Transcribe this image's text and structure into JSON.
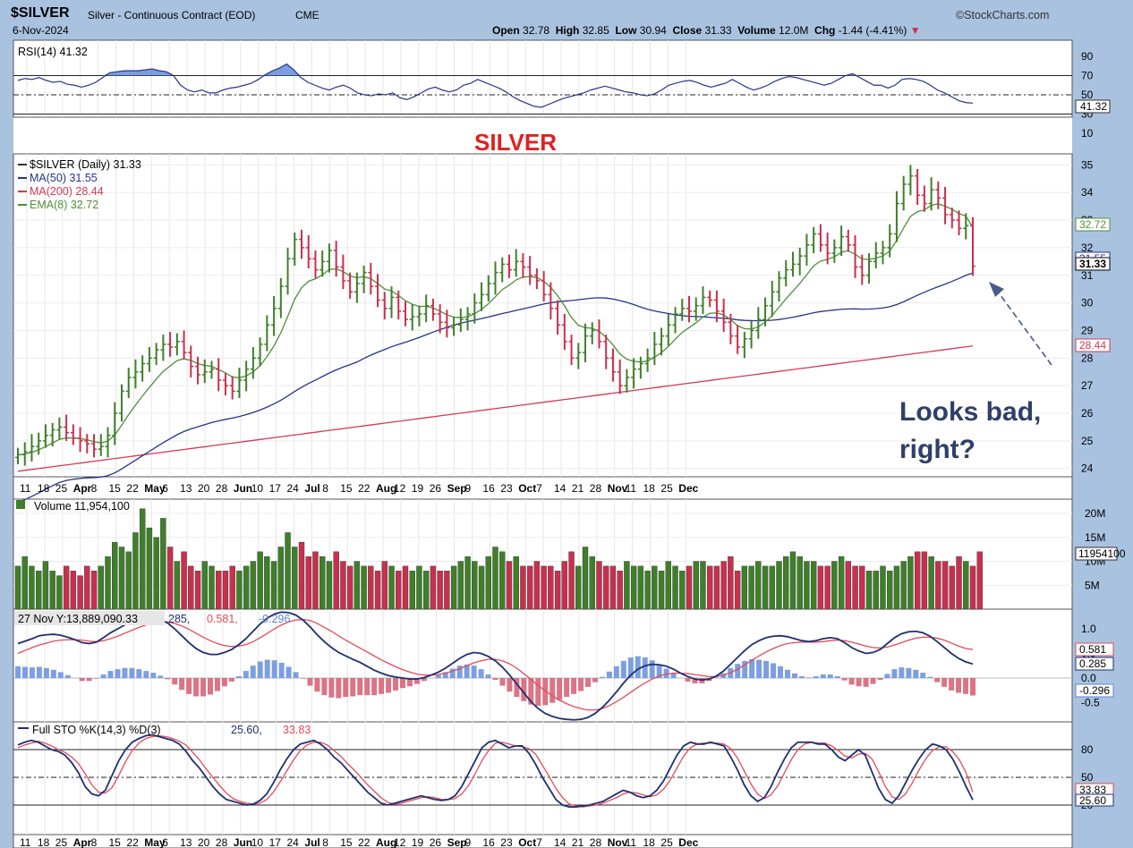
{
  "header": {
    "symbol": "$SILVER",
    "name": "Silver - Continuous Contract (EOD)",
    "exchange": "CME",
    "date": "6-Nov-2024",
    "brand": "©StockCharts.com",
    "open_label": "Open",
    "open": "32.78",
    "high_label": "High",
    "high": "32.85",
    "low_label": "Low",
    "low": "30.94",
    "close_label": "Close",
    "close": "31.33",
    "volume_label": "Volume",
    "volume": "12.0M",
    "chg_label": "Chg",
    "chg": "-1.44 (-4.41%)",
    "chg_arrow": "▼"
  },
  "colors": {
    "up": "#3f7f2a",
    "down": "#c8304e",
    "ma50": "#27348b",
    "ma200": "#d43a52",
    "ema8": "#4f8f3c",
    "macd": "#1f2f6f",
    "signal": "#e34a5a",
    "panel_bg": "#ffffff",
    "frame": "#a9c2e0"
  },
  "chart_data": [
    {
      "type": "line",
      "panel": "rsi",
      "legend": "RSI(14) 41.32",
      "ylim": [
        0,
        100
      ],
      "yticks": [
        "90",
        "70",
        "50",
        "30",
        "10"
      ],
      "levels": [
        70,
        50,
        30
      ],
      "last_value_label": "41.32",
      "values": [
        65,
        67,
        66,
        68,
        65,
        63,
        64,
        61,
        60,
        58,
        60,
        63,
        68,
        73,
        74,
        75,
        75,
        75,
        76,
        77,
        75,
        74,
        70,
        60,
        55,
        53,
        55,
        52,
        52,
        55,
        57,
        58,
        60,
        62,
        66,
        71,
        75,
        78,
        82,
        76,
        68,
        63,
        60,
        57,
        55,
        58,
        60,
        57,
        52,
        50,
        49,
        51,
        50,
        52,
        47,
        45,
        48,
        52,
        56,
        58,
        55,
        53,
        55,
        60,
        62,
        66,
        63,
        60,
        57,
        53,
        48,
        44,
        41,
        38,
        37,
        40,
        43,
        46,
        48,
        50,
        52,
        55,
        57,
        59,
        57,
        55,
        53,
        52,
        50,
        49,
        51,
        55,
        60,
        62,
        64,
        65,
        63,
        60,
        58,
        60,
        62,
        66,
        62,
        58,
        55,
        57,
        60,
        64,
        67,
        69,
        68,
        66,
        64,
        62,
        60,
        62,
        66,
        70,
        72,
        68,
        64,
        60,
        60,
        57,
        60,
        66,
        67,
        66,
        64,
        60,
        55,
        52,
        48,
        44,
        42,
        41.32
      ]
    },
    {
      "type": "ohlc",
      "panel": "price",
      "title": "SILVER",
      "legend": [
        "$SILVER (Daily) 31.33",
        "MA(50) 31.55",
        "MA(200) 28.44",
        "EMA(8) 32.72"
      ],
      "ylim": [
        23.7,
        35.4
      ],
      "yticks": [
        35,
        34,
        33,
        32,
        31,
        30,
        29,
        28,
        27,
        26,
        25,
        24
      ],
      "x_labels": [
        "11",
        "18",
        "25",
        "Apr",
        "8",
        "15",
        "22",
        "May",
        "6",
        "13",
        "20",
        "28",
        "Jun",
        "10",
        "17",
        "24",
        "Jul",
        "8",
        "15",
        "22",
        "Aug",
        "12",
        "19",
        "26",
        "Sep",
        "9",
        "16",
        "23",
        "Oct",
        "7",
        "14",
        "21",
        "28",
        "Nov",
        "11",
        "18",
        "25",
        "Dec"
      ],
      "bold_x_labels": [
        "Apr",
        "May",
        "Jun",
        "Jul",
        "Aug",
        "Sep",
        "Oct",
        "Nov",
        "Dec"
      ],
      "price_labels": [
        "32.72",
        "31.55",
        "31.33",
        "28.44"
      ],
      "annotation": "Looks bad, right?",
      "close": [
        24.5,
        24.6,
        24.8,
        25.0,
        25.2,
        25.4,
        25.5,
        25.3,
        25.1,
        25.0,
        24.9,
        24.7,
        24.8,
        25.2,
        26.0,
        26.8,
        27.3,
        27.5,
        27.8,
        28.0,
        28.3,
        28.5,
        28.4,
        28.6,
        28.2,
        27.7,
        27.4,
        27.5,
        27.6,
        27.2,
        27.0,
        26.8,
        27.2,
        27.6,
        28.0,
        28.5,
        29.2,
        29.8,
        30.6,
        31.6,
        32.3,
        32.0,
        31.6,
        31.2,
        31.5,
        31.9,
        31.3,
        30.8,
        30.4,
        30.7,
        31.1,
        30.6,
        30.1,
        29.8,
        30.2,
        29.7,
        29.4,
        29.5,
        29.6,
        29.9,
        29.6,
        29.3,
        29.1,
        29.2,
        29.4,
        29.6,
        30.0,
        30.3,
        30.7,
        31.1,
        31.4,
        31.2,
        31.5,
        31.3,
        31.0,
        30.8,
        30.3,
        29.8,
        29.2,
        28.6,
        28.0,
        28.2,
        28.8,
        29.0,
        28.6,
        28.0,
        27.5,
        27.0,
        27.3,
        27.6,
        27.8,
        28.0,
        28.5,
        28.8,
        29.2,
        29.6,
        29.8,
        29.7,
        29.9,
        30.2,
        30.1,
        29.7,
        29.3,
        28.8,
        28.4,
        28.7,
        29.0,
        29.4,
        29.9,
        30.4,
        30.9,
        31.2,
        31.4,
        31.7,
        32.1,
        32.5,
        32.1,
        31.8,
        32.0,
        32.4,
        32.1,
        31.3,
        31.0,
        31.5,
        31.8,
        32.0,
        32.5,
        33.6,
        34.3,
        34.6,
        33.9,
        33.6,
        34.1,
        33.8,
        33.2,
        33.0,
        32.7,
        32.8,
        31.33
      ]
    },
    {
      "type": "bar",
      "panel": "volume",
      "legend": "Volume 11,954,100",
      "yticks": [
        "20M",
        "15M",
        "10M",
        "5M"
      ],
      "last_value_label": "11954100",
      "unit": "millions",
      "values": [
        9,
        11,
        9,
        8,
        10,
        8,
        7,
        9,
        8,
        7,
        9,
        8,
        9,
        11,
        14,
        13,
        12,
        16,
        21,
        17,
        15,
        19,
        13,
        10,
        12,
        9,
        8,
        10,
        9,
        8,
        8,
        9,
        8,
        9,
        10,
        12,
        11,
        10,
        13,
        16,
        13,
        14,
        11,
        12,
        11,
        10,
        12,
        10,
        9,
        10,
        9,
        9,
        8,
        10,
        9,
        8,
        9,
        8,
        9,
        8,
        9,
        8,
        8,
        9,
        10,
        11,
        10,
        9,
        11,
        13,
        12,
        10,
        11,
        9,
        9,
        10,
        9,
        9,
        8,
        10,
        12,
        9,
        13,
        11,
        10,
        9,
        9,
        8,
        10,
        9,
        9,
        8,
        9,
        8,
        10,
        9,
        8,
        9,
        10,
        10,
        9,
        9,
        10,
        11,
        8,
        9,
        9,
        10,
        9,
        9,
        10,
        11,
        12,
        11,
        10,
        10,
        9,
        9,
        10,
        11,
        10,
        9,
        9,
        8,
        8,
        9,
        8,
        9,
        10,
        11,
        12,
        12,
        11,
        10,
        10,
        9,
        11,
        10,
        9,
        12
      ]
    },
    {
      "type": "line",
      "panel": "macd",
      "legend": [
        "27 Nov Y:13,889,090.33",
        "285,",
        "0.581,",
        "-0.296"
      ],
      "yticks": [
        "1.0",
        "0.5",
        "0.0",
        "-0.5"
      ],
      "price_labels": [
        "0.581",
        "0.285",
        "-0.296"
      ],
      "macd": [
        0.7,
        0.75,
        0.8,
        0.86,
        0.88,
        0.89,
        0.87,
        0.83,
        0.78,
        0.72,
        0.7,
        0.73,
        0.82,
        0.92,
        1.0,
        1.08,
        1.14,
        1.18,
        1.2,
        1.21,
        1.18,
        1.12,
        1.0,
        0.86,
        0.72,
        0.6,
        0.52,
        0.48,
        0.48,
        0.52,
        0.58,
        0.68,
        0.8,
        0.95,
        1.1,
        1.22,
        1.3,
        1.34,
        1.33,
        1.28,
        1.18,
        1.04,
        0.88,
        0.74,
        0.62,
        0.52,
        0.45,
        0.38,
        0.32,
        0.24,
        0.16,
        0.1,
        0.05,
        0.02,
        0.0,
        -0.02,
        -0.02,
        0.01,
        0.06,
        0.12,
        0.2,
        0.3,
        0.4,
        0.48,
        0.52,
        0.5,
        0.44,
        0.35,
        0.22,
        0.06,
        -0.12,
        -0.3,
        -0.48,
        -0.62,
        -0.72,
        -0.78,
        -0.82,
        -0.84,
        -0.85,
        -0.84,
        -0.8,
        -0.72,
        -0.6,
        -0.45,
        -0.28,
        -0.1,
        0.06,
        0.18,
        0.25,
        0.28,
        0.27,
        0.24,
        0.18,
        0.1,
        0.03,
        -0.02,
        -0.04,
        -0.02,
        0.04,
        0.14,
        0.28,
        0.42,
        0.56,
        0.68,
        0.76,
        0.82,
        0.85,
        0.86,
        0.84,
        0.8,
        0.76,
        0.74,
        0.76,
        0.8,
        0.82,
        0.8,
        0.72,
        0.62,
        0.55,
        0.5,
        0.52,
        0.58,
        0.7,
        0.82,
        0.9,
        0.94,
        0.95,
        0.92,
        0.85,
        0.74,
        0.62,
        0.5,
        0.4,
        0.33,
        0.285
      ],
      "signal": [
        0.5,
        0.56,
        0.62,
        0.67,
        0.71,
        0.75,
        0.77,
        0.78,
        0.78,
        0.77,
        0.75,
        0.74,
        0.76,
        0.8,
        0.85,
        0.91,
        0.97,
        1.03,
        1.08,
        1.12,
        1.14,
        1.14,
        1.11,
        1.06,
        0.99,
        0.91,
        0.83,
        0.76,
        0.7,
        0.66,
        0.64,
        0.65,
        0.68,
        0.74,
        0.82,
        0.91,
        1.0,
        1.08,
        1.14,
        1.18,
        1.19,
        1.17,
        1.11,
        1.03,
        0.95,
        0.86,
        0.77,
        0.69,
        0.61,
        0.53,
        0.45,
        0.37,
        0.3,
        0.23,
        0.17,
        0.12,
        0.08,
        0.06,
        0.06,
        0.07,
        0.1,
        0.14,
        0.19,
        0.25,
        0.31,
        0.35,
        0.38,
        0.38,
        0.35,
        0.29,
        0.2,
        0.09,
        -0.03,
        -0.15,
        -0.26,
        -0.36,
        -0.45,
        -0.52,
        -0.58,
        -0.62,
        -0.65,
        -0.65,
        -0.62,
        -0.56,
        -0.48,
        -0.39,
        -0.29,
        -0.19,
        -0.1,
        -0.02,
        0.04,
        0.08,
        0.1,
        0.1,
        0.09,
        0.07,
        0.05,
        0.03,
        0.03,
        0.06,
        0.11,
        0.18,
        0.27,
        0.36,
        0.45,
        0.53,
        0.6,
        0.66,
        0.7,
        0.72,
        0.73,
        0.73,
        0.73,
        0.74,
        0.76,
        0.77,
        0.76,
        0.73,
        0.69,
        0.65,
        0.62,
        0.61,
        0.63,
        0.67,
        0.72,
        0.77,
        0.81,
        0.83,
        0.83,
        0.81,
        0.77,
        0.71,
        0.65,
        0.6,
        0.581
      ],
      "histogram_label": "-0.296"
    },
    {
      "type": "line",
      "panel": "stochastic",
      "legend": [
        "Full STO %K(14,3) %D(3)",
        "25.60,",
        "33.83"
      ],
      "yticks": [
        "80",
        "50",
        "20"
      ],
      "levels": [
        80,
        50,
        20
      ],
      "price_labels": [
        "33.83",
        "25.60"
      ],
      "k": [
        85,
        88,
        90,
        88,
        84,
        80,
        78,
        74,
        66,
        55,
        40,
        32,
        30,
        36,
        52,
        68,
        80,
        88,
        92,
        95,
        96,
        94,
        92,
        90,
        86,
        78,
        68,
        60,
        50,
        40,
        32,
        26,
        24,
        22,
        20,
        21,
        25,
        32,
        44,
        58,
        70,
        80,
        86,
        88,
        90,
        86,
        80,
        72,
        66,
        58,
        50,
        42,
        34,
        28,
        22,
        20,
        22,
        24,
        26,
        28,
        30,
        28,
        26,
        25,
        26,
        30,
        40,
        54,
        68,
        82,
        88,
        90,
        86,
        82,
        84,
        84,
        76,
        64,
        50,
        38,
        26,
        20,
        18,
        18,
        19,
        20,
        22,
        24,
        28,
        32,
        36,
        34,
        30,
        28,
        30,
        36,
        46,
        60,
        74,
        84,
        88,
        86,
        86,
        88,
        86,
        84,
        72,
        58,
        42,
        30,
        24,
        28,
        40,
        56,
        70,
        82,
        88,
        88,
        88,
        86,
        86,
        80,
        72,
        68,
        74,
        80,
        74,
        56,
        38,
        26,
        22,
        30,
        44,
        58,
        70,
        80,
        86,
        84,
        80,
        70,
        56,
        40,
        25.6
      ],
      "d": [
        82,
        85,
        87,
        89,
        87,
        84,
        80,
        77,
        72,
        65,
        54,
        42,
        34,
        33,
        39,
        52,
        67,
        79,
        87,
        92,
        94,
        95,
        94,
        92,
        89,
        85,
        77,
        69,
        59,
        50,
        41,
        33,
        27,
        24,
        22,
        21,
        22,
        26,
        34,
        45,
        57,
        69,
        79,
        85,
        88,
        88,
        85,
        79,
        73,
        65,
        58,
        50,
        42,
        35,
        28,
        23,
        21,
        22,
        24,
        26,
        28,
        29,
        28,
        26,
        26,
        27,
        32,
        41,
        54,
        68,
        79,
        87,
        88,
        86,
        84,
        83,
        81,
        75,
        63,
        51,
        38,
        28,
        21,
        19,
        18,
        19,
        20,
        22,
        25,
        28,
        32,
        34,
        33,
        31,
        29,
        31,
        37,
        47,
        60,
        73,
        82,
        86,
        87,
        87,
        87,
        86,
        81,
        71,
        57,
        43,
        32,
        27,
        31,
        41,
        55,
        69,
        80,
        86,
        88,
        87,
        87,
        84,
        79,
        73,
        71,
        75,
        76,
        70,
        56,
        40,
        29,
        26,
        32,
        44,
        58,
        70,
        79,
        83,
        83,
        78,
        69,
        55,
        33.83
      ],
      "x_labels": [
        "11",
        "18",
        "25",
        "Apr",
        "8",
        "15",
        "22",
        "May",
        "6",
        "13",
        "20",
        "28",
        "Jun",
        "10",
        "17",
        "24",
        "Jul",
        "8",
        "15",
        "22",
        "Aug",
        "12",
        "19",
        "26",
        "Sep",
        "9",
        "16",
        "23",
        "Oct",
        "7",
        "14",
        "21",
        "28",
        "Nov",
        "11",
        "18",
        "25",
        "Dec"
      ]
    }
  ]
}
